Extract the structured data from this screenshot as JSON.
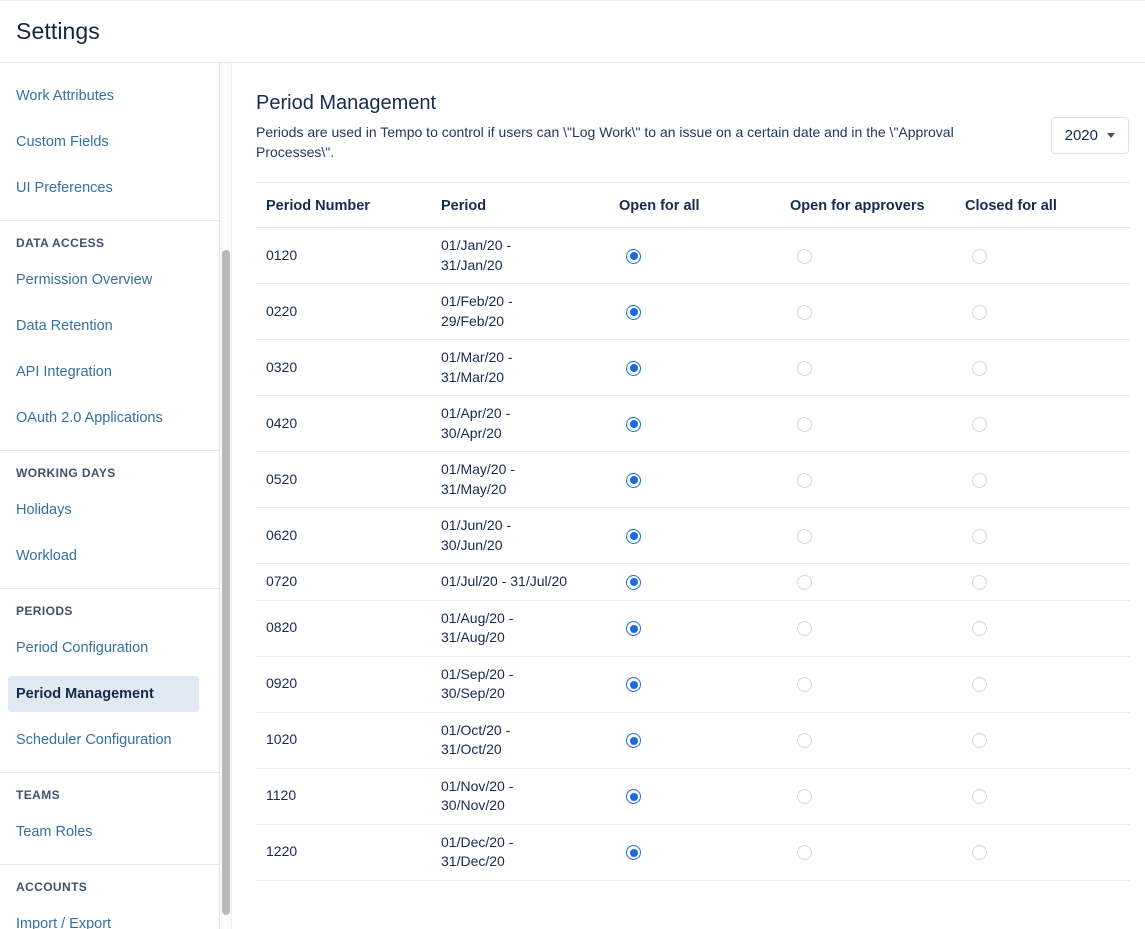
{
  "page": {
    "title": "Settings"
  },
  "colors": {
    "accent_blue": "#1a6ce0",
    "link_blue": "#35719f",
    "active_item_bg": "#e0e9f3",
    "text_dark": "#172b4d"
  },
  "sidebar": {
    "active": "Period Management",
    "groups": [
      {
        "header": "",
        "items": [
          "Work Attributes",
          "Custom Fields",
          "UI Preferences"
        ]
      },
      {
        "header": "DATA ACCESS",
        "items": [
          "Permission Overview",
          "Data Retention",
          "API Integration",
          "OAuth 2.0 Applications"
        ]
      },
      {
        "header": "WORKING DAYS",
        "items": [
          "Holidays",
          "Workload"
        ]
      },
      {
        "header": "PERIODS",
        "items": [
          "Period Configuration",
          "Period Management",
          "Scheduler Configuration"
        ]
      },
      {
        "header": "TEAMS",
        "items": [
          "Team Roles"
        ]
      },
      {
        "header": "ACCOUNTS",
        "items": [
          "Import / Export"
        ]
      }
    ]
  },
  "main": {
    "heading": "Period Management",
    "description": "Periods are used in Tempo to control if users can \\\"Log Work\\\" to an issue on a certain date and in the \\\"Approval Processes\\\".",
    "year_selector": {
      "value": "2020"
    }
  },
  "table": {
    "columns": [
      {
        "label": "Period Number"
      },
      {
        "label": "Period"
      },
      {
        "label": "Open for all",
        "key": "open_for_all"
      },
      {
        "label": "Open for approvers",
        "key": "open_for_approvers"
      },
      {
        "label": "Closed for all",
        "key": "closed_for_all"
      }
    ],
    "rows": [
      {
        "number": "0120",
        "period": "01/Jan/20 -\n31/Jan/20",
        "selected": "open_for_all"
      },
      {
        "number": "0220",
        "period": "01/Feb/20 -\n29/Feb/20",
        "selected": "open_for_all"
      },
      {
        "number": "0320",
        "period": "01/Mar/20 -\n31/Mar/20",
        "selected": "open_for_all"
      },
      {
        "number": "0420",
        "period": "01/Apr/20 -\n30/Apr/20",
        "selected": "open_for_all"
      },
      {
        "number": "0520",
        "period": "01/May/20 -\n31/May/20",
        "selected": "open_for_all"
      },
      {
        "number": "0620",
        "period": "01/Jun/20 -\n30/Jun/20",
        "selected": "open_for_all"
      },
      {
        "number": "0720",
        "period": "01/Jul/20 - 31/Jul/20",
        "selected": "open_for_all"
      },
      {
        "number": "0820",
        "period": "01/Aug/20 -\n31/Aug/20",
        "selected": "open_for_all"
      },
      {
        "number": "0920",
        "period": "01/Sep/20 -\n30/Sep/20",
        "selected": "open_for_all"
      },
      {
        "number": "1020",
        "period": "01/Oct/20 -\n31/Oct/20",
        "selected": "open_for_all"
      },
      {
        "number": "1120",
        "period": "01/Nov/20 -\n30/Nov/20",
        "selected": "open_for_all"
      },
      {
        "number": "1220",
        "period": "01/Dec/20 -\n31/Dec/20",
        "selected": "open_for_all"
      }
    ]
  }
}
